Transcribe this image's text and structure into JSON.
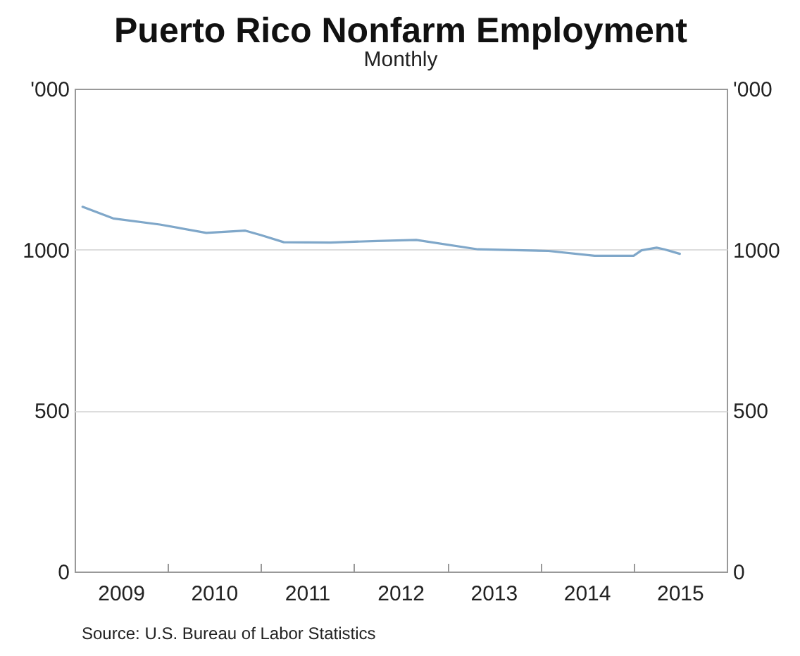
{
  "chart_data": {
    "type": "line",
    "title": "Puerto Rico Nonfarm Employment",
    "subtitle": "Monthly",
    "annotations": [
      "Source: U.S. Bureau of Labor Statistics"
    ],
    "x": [
      "2009-02",
      "2009-06",
      "2009-12",
      "2010-06",
      "2010-11",
      "2011-01",
      "2011-04",
      "2011-10",
      "2012-04",
      "2012-09",
      "2013-05",
      "2014-02",
      "2014-08",
      "2015-01",
      "2015-02",
      "2015-04",
      "2015-05",
      "2015-07"
    ],
    "series": [
      {
        "color": "#7fa7c9",
        "values": [
          1133,
          1097,
          1078,
          1052,
          1059,
          1045,
          1023,
          1022,
          1027,
          1030,
          1001,
          996,
          981,
          981,
          998,
          1006,
          1001,
          987
        ]
      }
    ],
    "xlim": [
      "2009-01",
      "2016-01"
    ],
    "xticks": [
      {
        "value": "2009-07",
        "label": "2009"
      },
      {
        "value": "2010-01",
        "label": null
      },
      {
        "value": "2010-07",
        "label": "2010"
      },
      {
        "value": "2011-01",
        "label": null
      },
      {
        "value": "2011-07",
        "label": "2011"
      },
      {
        "value": "2012-01",
        "label": null
      },
      {
        "value": "2012-07",
        "label": "2012"
      },
      {
        "value": "2013-01",
        "label": null
      },
      {
        "value": "2013-07",
        "label": "2013"
      },
      {
        "value": "2014-01",
        "label": null
      },
      {
        "value": "2014-07",
        "label": "2014"
      },
      {
        "value": "2015-01",
        "label": null
      },
      {
        "value": "2015-07",
        "label": "2015"
      }
    ],
    "ylabel": "'000",
    "y2label": "'000",
    "ylim": [
      0,
      1500
    ],
    "yticks": [
      0,
      500,
      1000
    ],
    "y2lim": [
      0,
      1500
    ],
    "y2ticks": [
      0,
      500,
      1000
    ],
    "grid": "y",
    "marker": "none",
    "line_style": "solid"
  }
}
